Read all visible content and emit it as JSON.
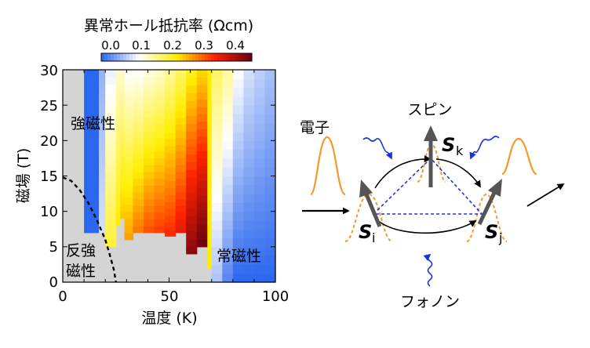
{
  "heatmap": {
    "colorbar": {
      "title": "異常ホール抵抗率 (Ωcm)",
      "ticks": [
        "0.0",
        "0.1",
        "0.2",
        "0.3",
        "0.4"
      ],
      "range": [
        0.0,
        0.4
      ],
      "stops": [
        "#2a66ee",
        "#ffffff",
        "#ffee00",
        "#ff2200",
        "#6b0010"
      ]
    },
    "xaxis": {
      "label": "温度 (K)",
      "ticks": [
        "0",
        "50",
        "100"
      ],
      "range": [
        0,
        100
      ]
    },
    "yaxis": {
      "label": "磁場 (T)",
      "ticks": [
        "0",
        "5",
        "10",
        "15",
        "20",
        "25",
        "30"
      ],
      "range": [
        0,
        30
      ]
    },
    "regions": {
      "ferro": "強磁性",
      "antiferro_line1": "反強",
      "antiferro_line2": "磁性",
      "para": "常磁性"
    },
    "colors": {
      "no_data": "#d4d4d4",
      "boundary": "#000000"
    },
    "chart_data": {
      "type": "heatmap",
      "title": "",
      "xlabel": "温度 (K)",
      "ylabel": "磁場 (T)",
      "xlim": [
        0,
        100
      ],
      "ylim": [
        0,
        30
      ],
      "zlabel": "異常ホール抵抗率 (Ωcm)",
      "zlim": [
        0.0,
        0.4
      ],
      "columns": [
        {
          "t0": 0,
          "t1": 10,
          "f_min": 0,
          "f_max": 30,
          "v_low": null,
          "v_high": null
        },
        {
          "t0": 10,
          "t1": 17,
          "f_min": 7,
          "f_max": 30,
          "v_low": 0.0,
          "v_high": 0.0
        },
        {
          "t0": 17,
          "t1": 20,
          "f_min": 7,
          "f_max": 30,
          "v_low": 0.08,
          "v_high": 0.05
        },
        {
          "t0": 20,
          "t1": 25,
          "f_min": 5,
          "f_max": 30,
          "v_low": 0.18,
          "v_high": 0.09
        },
        {
          "t0": 25,
          "t1": 27,
          "f_min": 8,
          "f_max": 30,
          "v_low": 0.2,
          "v_high": 0.12
        },
        {
          "t0": 27,
          "t1": 29,
          "f_min": 9,
          "f_max": 30,
          "v_low": 0.22,
          "v_high": 0.12
        },
        {
          "t0": 29,
          "t1": 33,
          "f_min": 6,
          "f_max": 30,
          "v_low": 0.24,
          "v_high": 0.1
        },
        {
          "t0": 33,
          "t1": 38,
          "f_min": 7,
          "f_max": 30,
          "v_low": 0.26,
          "v_high": 0.1
        },
        {
          "t0": 38,
          "t1": 43,
          "f_min": 7,
          "f_max": 30,
          "v_low": 0.28,
          "v_high": 0.11
        },
        {
          "t0": 43,
          "t1": 48,
          "f_min": 7,
          "f_max": 30,
          "v_low": 0.29,
          "v_high": 0.12
        },
        {
          "t0": 48,
          "t1": 53,
          "f_min": 6.5,
          "f_max": 30,
          "v_low": 0.3,
          "v_high": 0.14
        },
        {
          "t0": 53,
          "t1": 58,
          "f_min": 7,
          "f_max": 30,
          "v_low": 0.32,
          "v_high": 0.16
        },
        {
          "t0": 58,
          "t1": 63,
          "f_min": 4,
          "f_max": 30,
          "v_low": 0.38,
          "v_high": 0.19
        },
        {
          "t0": 63,
          "t1": 68,
          "f_min": 5,
          "f_max": 30,
          "v_low": 0.4,
          "v_high": 0.21
        },
        {
          "t0": 68,
          "t1": 70,
          "f_min": 2,
          "f_max": 30,
          "v_low": 0.2,
          "v_high": 0.2
        },
        {
          "t0": 70,
          "t1": 75,
          "f_min": 0,
          "f_max": 30,
          "v_low": 0.06,
          "v_high": 0.16
        },
        {
          "t0": 75,
          "t1": 80,
          "f_min": 0,
          "f_max": 30,
          "v_low": 0.02,
          "v_high": 0.14
        },
        {
          "t0": 80,
          "t1": 85,
          "f_min": 0,
          "f_max": 30,
          "v_low": 0.0,
          "v_high": 0.1
        },
        {
          "t0": 85,
          "t1": 90,
          "f_min": 0,
          "f_max": 30,
          "v_low": 0.0,
          "v_high": 0.08
        },
        {
          "t0": 90,
          "t1": 95,
          "f_min": 0,
          "f_max": 30,
          "v_low": 0.0,
          "v_high": 0.07
        },
        {
          "t0": 95,
          "t1": 100,
          "f_min": 0,
          "f_max": 30,
          "v_low": 0.0,
          "v_high": 0.06
        }
      ],
      "boundary_curve": [
        {
          "x": 0,
          "y": 14.8
        },
        {
          "x": 4,
          "y": 14.3
        },
        {
          "x": 8,
          "y": 13.0
        },
        {
          "x": 12,
          "y": 11.2
        },
        {
          "x": 16,
          "y": 8.8
        },
        {
          "x": 20,
          "y": 6.0
        },
        {
          "x": 22,
          "y": 4.0
        },
        {
          "x": 24,
          "y": 1.8
        },
        {
          "x": 25,
          "y": 0.0
        }
      ]
    }
  },
  "schematic": {
    "labels": {
      "spin": "スピン",
      "electron": "電子",
      "phonon": "フォノン",
      "s_letter": "S",
      "sub_k": "k",
      "sub_i": "i",
      "sub_j": "j"
    },
    "colors": {
      "spin_text": "#666666",
      "spin_arrow": "#555555",
      "electron": "#f39a2e",
      "phonon": "#1a33dd",
      "triangle": "#1a33dd",
      "path": "#000000"
    }
  }
}
